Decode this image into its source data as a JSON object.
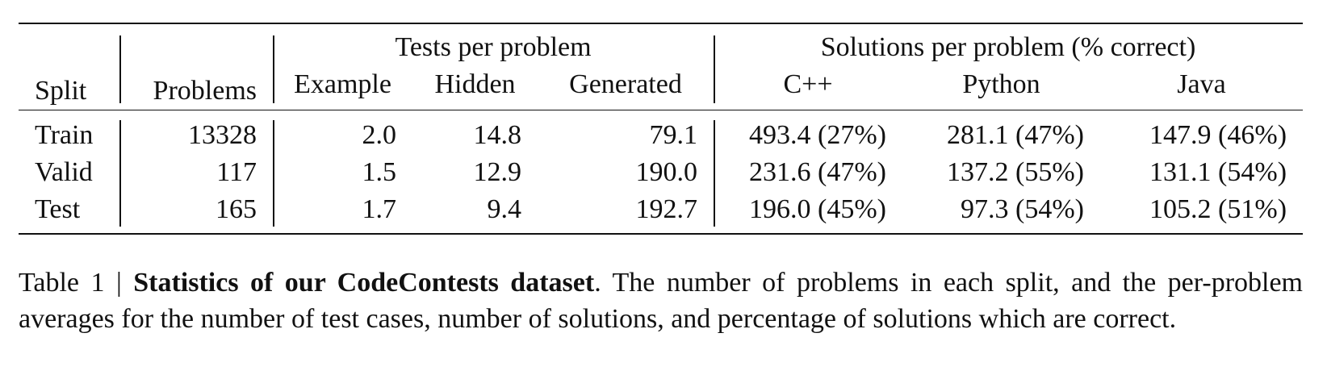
{
  "table": {
    "header": {
      "split": "Split",
      "problems": "Problems",
      "tests_group": "Tests per problem",
      "solutions_group": "Solutions per problem (% correct)",
      "columns": [
        "Example",
        "Hidden",
        "Generated",
        "C++",
        "Python",
        "Java"
      ]
    },
    "rows": [
      [
        "Train",
        "13328",
        "2.0",
        "14.8",
        "79.1",
        "493.4 (27%)",
        "281.1 (47%)",
        "147.9 (46%)"
      ],
      [
        "Valid",
        "117",
        "1.5",
        "12.9",
        "190.0",
        "231.6 (47%)",
        "137.2 (55%)",
        "131.1 (54%)"
      ],
      [
        "Test",
        "165",
        "1.7",
        "9.4",
        "192.7",
        "196.0 (45%)",
        "97.3 (54%)",
        "105.2 (51%)"
      ]
    ]
  },
  "caption": {
    "label": "Table 1",
    "separator": "|",
    "title": "Statistics of our CodeContests dataset",
    "text": ". The number of problems in each split, and the per-problem averages for the number of test cases, number of solutions, and percentage of solutions which are correct."
  }
}
